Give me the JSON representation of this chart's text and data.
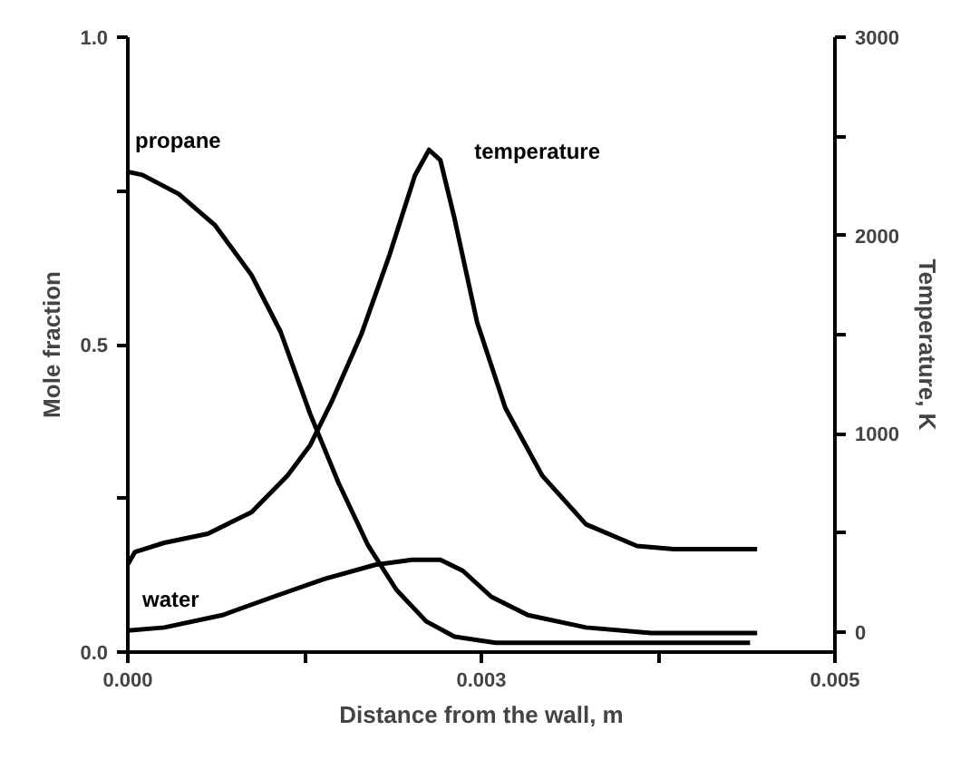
{
  "chart_data": {
    "type": "line",
    "xlabel": "Distance from the wall, m",
    "ylabel": "Mole fraction",
    "y2label": "Temperature, K",
    "xlim": [
      0,
      0.005
    ],
    "xticks": [
      {
        "value": 0,
        "label": "0.000"
      },
      {
        "value": 0.00125,
        "label": null
      },
      {
        "value": 0.0025,
        "label": "0.003"
      },
      {
        "value": 0.00375,
        "label": null
      },
      {
        "value": 0.005,
        "label": "0.005"
      }
    ],
    "ylim": [
      0,
      1.0
    ],
    "yticks": [
      {
        "value": 0,
        "label": "0.0"
      },
      {
        "value": 0.25,
        "label": null
      },
      {
        "value": 0.5,
        "label": "0.5"
      },
      {
        "value": 0.75,
        "label": null
      },
      {
        "value": 1.0,
        "label": "1.0"
      }
    ],
    "y2lim": [
      -100,
      3000
    ],
    "y2ticks": [
      0,
      {
        "value": 500,
        "label": null
      },
      1000,
      {
        "value": 1500,
        "label": null
      },
      2000,
      {
        "value": 2500,
        "label": null
      },
      3000
    ],
    "grid": false,
    "legend": false,
    "marker": "none",
    "line_style": "solid",
    "series": [
      {
        "name": "propane",
        "color": "#000000",
        "x": [
          0,
          0.000103,
          0.00036,
          0.000617,
          0.000875,
          0.00108,
          0.00129,
          0.00149,
          0.0017,
          0.0019,
          0.00211,
          0.00231,
          0.0026,
          0.0044
        ],
        "values": [
          0.781,
          0.776,
          0.745,
          0.694,
          0.613,
          0.521,
          0.387,
          0.275,
          0.173,
          0.101,
          0.05,
          0.025,
          0.015,
          0.015
        ]
      },
      {
        "name": "temperature",
        "color": "#000000",
        "axis": "y2",
        "x": [
          0,
          5.1e-05,
          0.000258,
          0.000566,
          0.000875,
          0.00113,
          0.00129,
          0.00144,
          0.00165,
          0.00185,
          0.00203,
          0.00213,
          0.00221,
          0.00231,
          0.00247,
          0.00267,
          0.00293,
          0.00324,
          0.0036,
          0.00386,
          0.00445
        ],
        "values": [
          343,
          405,
          451,
          497,
          605,
          790,
          944,
          1160,
          1500,
          1901,
          2303,
          2432,
          2380,
          2086,
          1562,
          1130,
          790,
          544,
          435,
          419,
          419
        ]
      },
      {
        "name": "water",
        "color": "#000000",
        "x": [
          0,
          0.000258,
          0.000668,
          0.00103,
          0.00139,
          0.00175,
          0.00201,
          0.00221,
          0.00237,
          0.00257,
          0.00283,
          0.00324,
          0.0037,
          0.00445
        ],
        "values": [
          0.035,
          0.04,
          0.06,
          0.09,
          0.119,
          0.142,
          0.15,
          0.15,
          0.132,
          0.09,
          0.06,
          0.04,
          0.031,
          0.031
        ]
      }
    ]
  }
}
